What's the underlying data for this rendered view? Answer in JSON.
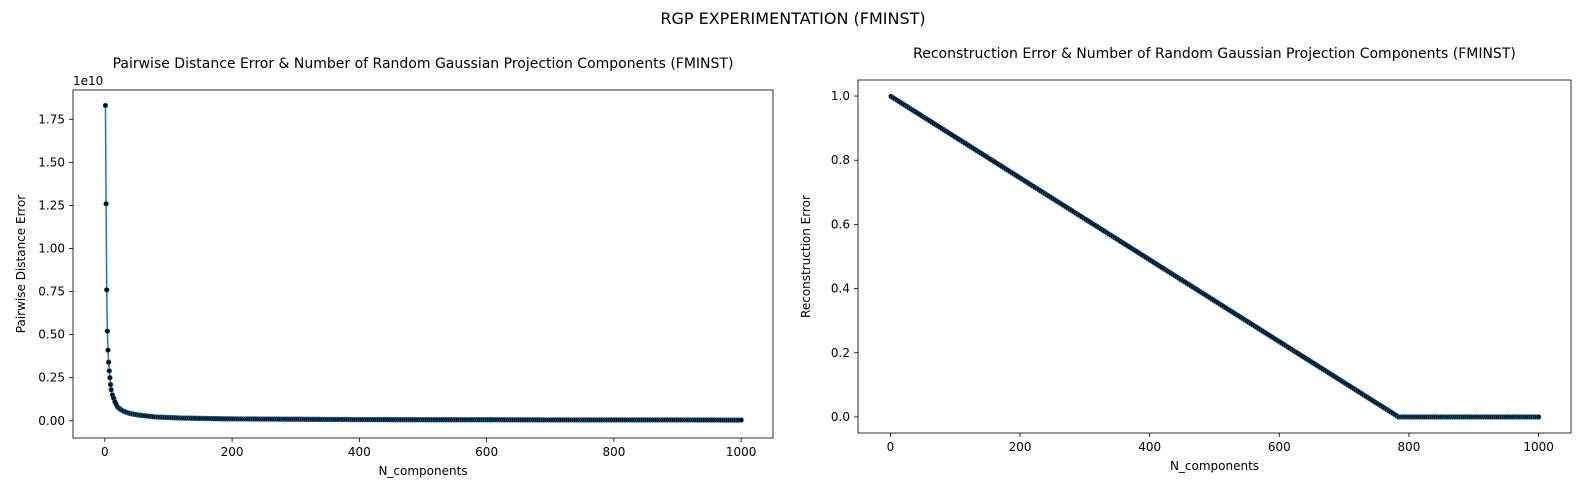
{
  "figure": {
    "suptitle": "RGP EXPERIMENTATION (FMINST)"
  },
  "colors": {
    "line": "#1f77b4",
    "marker": "#000000",
    "marker_edge": "#1f77b4"
  },
  "chart_data": [
    {
      "type": "line",
      "title": "Pairwise Distance Error & Number of Random Gaussian Projection Components (FMINST)",
      "xlabel": "N_components",
      "ylabel": "Pairwise Distance Error",
      "y_offset_label": "1e10",
      "xlim": [
        -50,
        1050
      ],
      "ylim": [
        -0.1,
        1.92
      ],
      "y_scale_factor": 10000000000,
      "xticks": [
        0,
        200,
        400,
        600,
        800,
        1000
      ],
      "xtick_labels": [
        "0",
        "200",
        "400",
        "600",
        "800",
        "1000"
      ],
      "yticks": [
        0.0,
        0.25,
        0.5,
        0.75,
        1.0,
        1.25,
        1.5,
        1.75
      ],
      "ytick_labels": [
        "0.00",
        "0.25",
        "0.50",
        "0.75",
        "1.00",
        "1.25",
        "1.50",
        "1.75"
      ],
      "grid": false,
      "markers": true,
      "series": [
        {
          "x": [
            1,
            2,
            3,
            4,
            5,
            6,
            7,
            8,
            9,
            10,
            12,
            14,
            16,
            18,
            20,
            25,
            30,
            35,
            40,
            50,
            60,
            70,
            80,
            100,
            120,
            150,
            175,
            200,
            250,
            300,
            340,
            400,
            500,
            600,
            700,
            800,
            900,
            1000
          ],
          "y": [
            1.83,
            1.26,
            0.76,
            0.52,
            0.41,
            0.34,
            0.29,
            0.25,
            0.21,
            0.18,
            0.15,
            0.13,
            0.11,
            0.095,
            0.08,
            0.065,
            0.055,
            0.048,
            0.042,
            0.035,
            0.03,
            0.026,
            0.022,
            0.019,
            0.016,
            0.014,
            0.012,
            0.011,
            0.01,
            0.009,
            0.008,
            0.007,
            0.006,
            0.006,
            0.005,
            0.005,
            0.005,
            0.004
          ]
        }
      ]
    },
    {
      "type": "line",
      "title": "Reconstruction Error & Number of Random Gaussian Projection Components (FMINST)",
      "xlabel": "N_components",
      "ylabel": "Reconstruction Error",
      "xlim": [
        -50,
        1050
      ],
      "ylim": [
        -0.05,
        1.05
      ],
      "xticks": [
        0,
        200,
        400,
        600,
        800,
        1000
      ],
      "xtick_labels": [
        "0",
        "200",
        "400",
        "600",
        "800",
        "1000"
      ],
      "yticks": [
        0.0,
        0.2,
        0.4,
        0.6,
        0.8,
        1.0
      ],
      "ytick_labels": [
        "0.0",
        "0.2",
        "0.4",
        "0.6",
        "0.8",
        "1.0"
      ],
      "grid": false,
      "markers": true,
      "series": [
        {
          "x": [
            1,
            784,
            1000
          ],
          "y": [
            0.9987,
            0.0,
            0.0
          ]
        }
      ]
    }
  ]
}
